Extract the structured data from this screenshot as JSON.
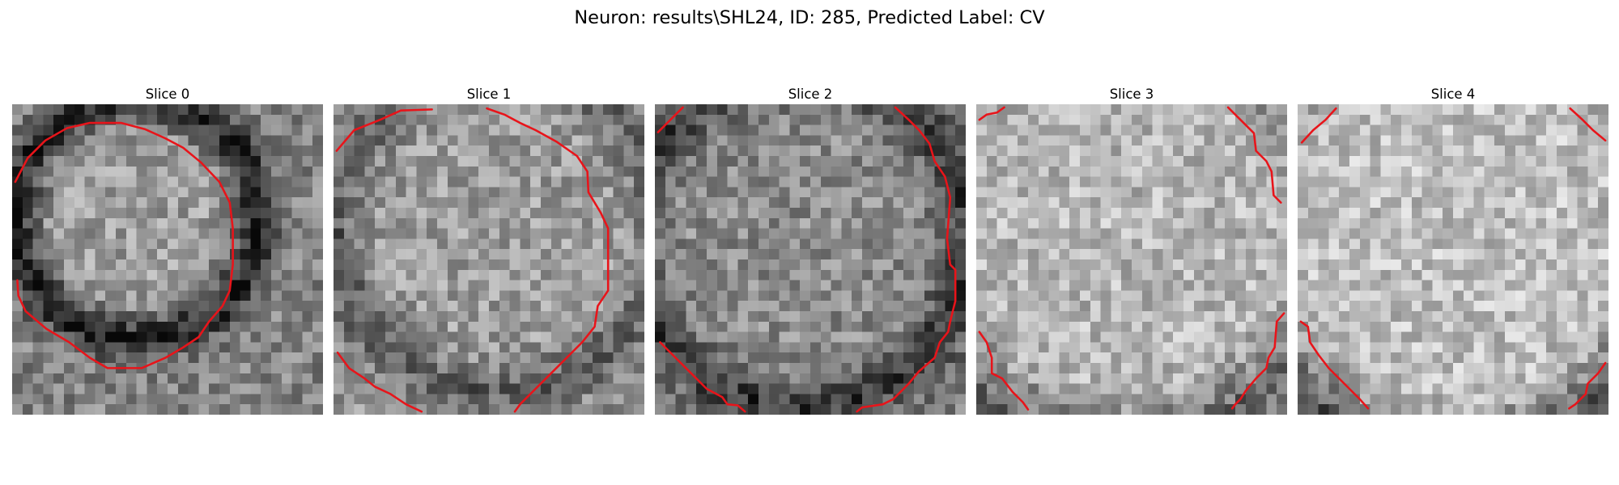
{
  "figure": {
    "title": "Neuron: results\\SHL24, ID: 285, Predicted Label: CV"
  },
  "panels": [
    {
      "title": "Slice 0"
    },
    {
      "title": "Slice 1"
    },
    {
      "title": "Slice 2"
    },
    {
      "title": "Slice 3"
    },
    {
      "title": "Slice 4"
    }
  ],
  "colors": {
    "contour": "#e8141a",
    "colormap": "gray"
  }
}
